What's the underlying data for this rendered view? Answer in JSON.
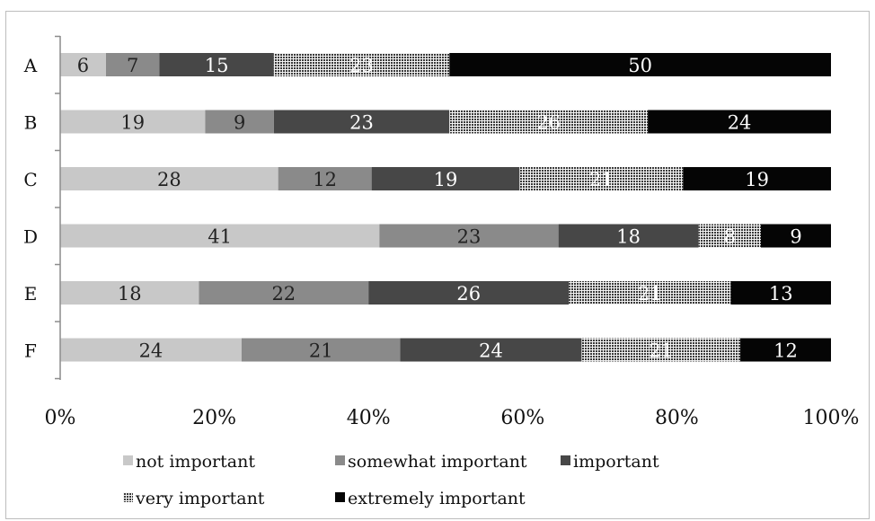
{
  "chart_data": {
    "type": "bar",
    "orientation": "horizontal",
    "stacked": "percent",
    "title": "",
    "xlabel": "",
    "ylabel": "",
    "categories": [
      "A",
      "B",
      "C",
      "D",
      "E",
      "F"
    ],
    "xlim": [
      0,
      100
    ],
    "x_ticks": [
      "0%",
      "20%",
      "40%",
      "60%",
      "80%",
      "100%"
    ],
    "grid": false,
    "legend_position": "bottom",
    "series": [
      {
        "name": "not important",
        "color": "#c8c8c8",
        "pattern": "solid",
        "label_color": "#222222",
        "values": [
          6,
          19,
          28,
          41,
          18,
          24
        ]
      },
      {
        "name": "somewhat important",
        "color": "#8a8a8a",
        "pattern": "solid",
        "label_color": "#222222",
        "values": [
          7,
          9,
          12,
          23,
          22,
          21
        ]
      },
      {
        "name": "important",
        "color": "#474747",
        "pattern": "solid",
        "label_color": "#ffffff",
        "values": [
          15,
          23,
          19,
          18,
          26,
          24
        ]
      },
      {
        "name": "very important",
        "color": "#3a3a3a",
        "pattern": "dots",
        "label_color": "#ffffff",
        "values": [
          23,
          26,
          21,
          8,
          21,
          21
        ]
      },
      {
        "name": "extremely important",
        "color": "#050505",
        "pattern": "solid",
        "label_color": "#ffffff",
        "values": [
          50,
          24,
          19,
          9,
          13,
          12
        ]
      }
    ]
  }
}
